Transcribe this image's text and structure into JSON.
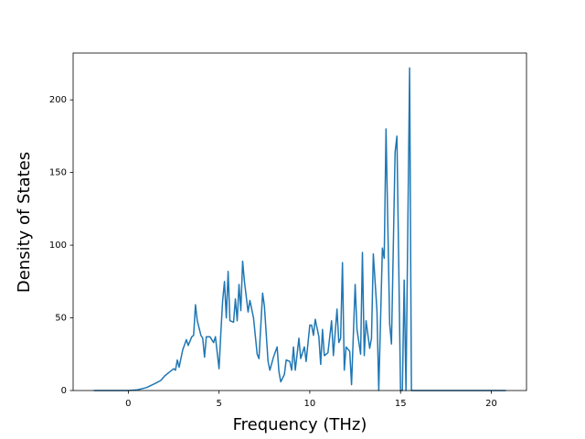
{
  "chart_data": {
    "type": "line",
    "x_label": "Frequency (THz)",
    "y_label": "Density of States",
    "color": "#1f77b4",
    "xlim": [
      -3.04,
      21.94
    ],
    "ylim": [
      0,
      232.2
    ],
    "xticks": [
      0,
      5,
      10,
      15,
      20
    ],
    "yticks": [
      0,
      50,
      100,
      150,
      200
    ],
    "x": [
      -1.9,
      0,
      0.5,
      1,
      1.5,
      1.8,
      2,
      2.3,
      2.5,
      2.6,
      2.7,
      2.8,
      3,
      3.2,
      3.3,
      3.5,
      3.6,
      3.7,
      3.8,
      4,
      4.1,
      4.2,
      4.3,
      4.5,
      4.7,
      4.8,
      5,
      5.1,
      5.2,
      5.3,
      5.4,
      5.5,
      5.6,
      5.8,
      5.9,
      6,
      6.1,
      6.2,
      6.3,
      6.4,
      6.6,
      6.7,
      6.9,
      7.1,
      7.2,
      7.4,
      7.5,
      7.7,
      7.8,
      8,
      8.2,
      8.3,
      8.4,
      8.6,
      8.7,
      8.9,
      9,
      9.1,
      9.2,
      9.4,
      9.5,
      9.7,
      9.8,
      10,
      10.1,
      10.2,
      10.3,
      10.5,
      10.6,
      10.7,
      10.8,
      11,
      11.2,
      11.3,
      11.5,
      11.6,
      11.7,
      11.8,
      11.9,
      12,
      12.2,
      12.3,
      12.5,
      12.6,
      12.8,
      12.9,
      13,
      13.1,
      13.3,
      13.4,
      13.5,
      13.7,
      13.8,
      14,
      14.1,
      14.2,
      14.4,
      14.5,
      14.7,
      14.8,
      15,
      15.1,
      15.2,
      15.3,
      15.5,
      15.6,
      20.8
    ],
    "values": [
      0,
      0,
      0.5,
      2,
      5,
      7,
      10,
      13,
      15,
      14,
      21,
      16,
      28,
      35,
      31,
      37,
      38,
      59,
      48,
      38,
      36,
      23,
      37,
      37,
      33,
      37,
      15,
      40,
      62,
      75,
      50,
      82,
      48,
      47,
      63,
      48,
      73,
      55,
      89,
      75,
      54,
      62,
      50,
      25,
      22,
      67,
      58,
      20,
      14,
      23,
      30,
      13,
      6,
      11,
      21,
      20,
      14,
      30,
      14,
      36,
      22,
      30,
      20,
      45,
      45,
      38,
      49,
      37,
      18,
      42,
      24,
      26,
      48,
      24,
      56,
      33,
      36,
      88,
      14,
      30,
      27,
      4,
      73,
      42,
      25,
      95,
      24,
      48,
      29,
      36,
      94,
      55,
      0,
      98,
      91,
      180,
      46,
      32,
      164,
      175,
      0,
      0,
      76,
      0,
      222,
      0,
      0
    ]
  }
}
